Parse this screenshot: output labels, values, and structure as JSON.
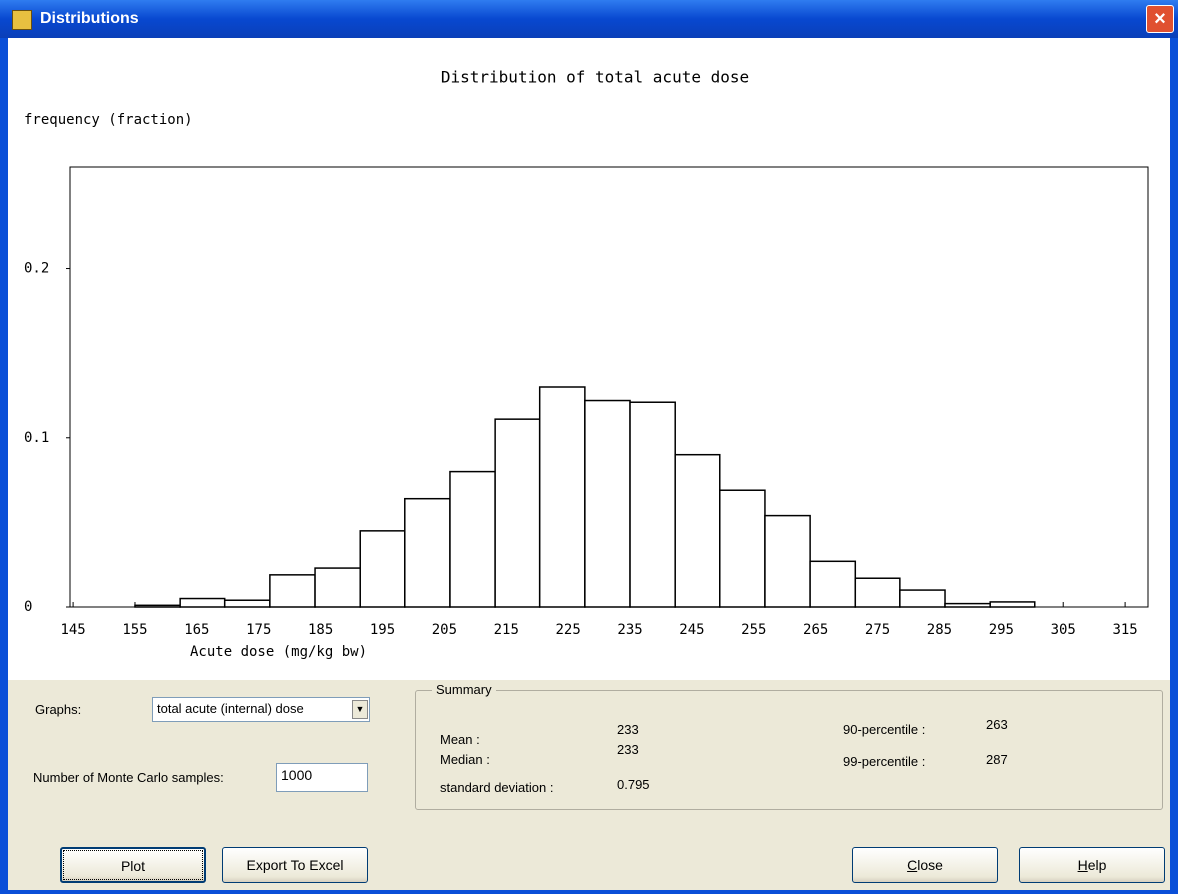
{
  "window": {
    "title": "Distributions"
  },
  "chart_data": {
    "type": "histogram",
    "title": "Distribution of total acute dose",
    "y_label": "frequency (fraction)",
    "x_label": "Acute dose (mg/kg bw)",
    "bins": [
      155,
      162.3,
      169.5,
      176.8,
      184.1,
      191.4,
      198.6,
      205.9,
      213.2,
      220.4,
      227.7,
      235.0,
      242.3,
      249.5,
      256.8,
      264.1,
      271.4,
      278.6,
      285.9,
      293.2,
      300.4
    ],
    "values": [
      0.001,
      0.005,
      0.004,
      0.019,
      0.023,
      0.045,
      0.064,
      0.08,
      0.111,
      0.13,
      0.122,
      0.121,
      0.09,
      0.069,
      0.054,
      0.027,
      0.017,
      0.01,
      0.002,
      0.003
    ],
    "color": "#ffffff",
    "xlim": [
      144.5,
      318.7
    ],
    "xticks": [
      145,
      155,
      165,
      175,
      185,
      195,
      205,
      215,
      225,
      235,
      245,
      255,
      265,
      275,
      285,
      295,
      305,
      315
    ],
    "ylim": [
      0,
      0.26
    ],
    "yticks": [
      0,
      0.1,
      0.2
    ]
  },
  "controls": {
    "graphs_label": "Graphs:",
    "graphs_value": "total acute (internal) dose",
    "samples_label": "Number of Monte Carlo samples:",
    "samples_value": "1000"
  },
  "summary": {
    "title": "Summary",
    "items": [
      {
        "label": "Mean :",
        "value": 233
      },
      {
        "label": "Median :",
        "value": 233
      },
      {
        "label": "standard deviation :",
        "value": 0.795
      },
      {
        "label": "90-percentile :",
        "value": 263
      },
      {
        "label": "99-percentile :",
        "value": 287
      }
    ]
  },
  "buttons": [
    "Plot",
    "Export To Excel",
    "Close",
    "Help"
  ]
}
